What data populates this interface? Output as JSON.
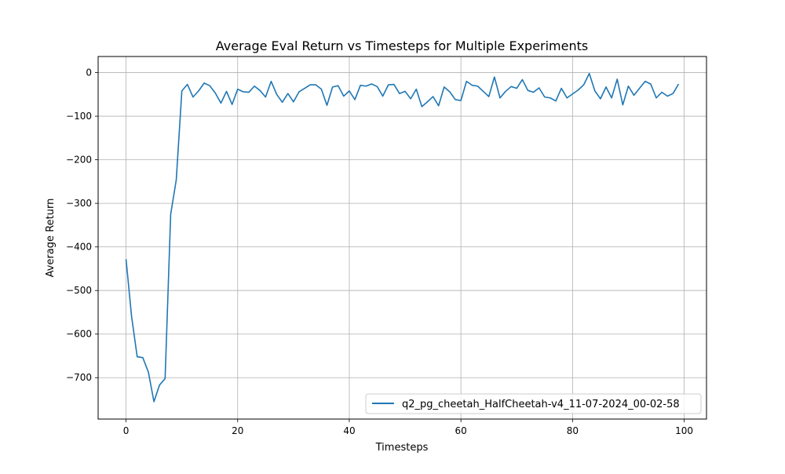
{
  "chart_data": {
    "type": "line",
    "title": "Average Eval Return vs Timesteps for Multiple Experiments",
    "xlabel": "Timesteps",
    "ylabel": "Average Return",
    "xlim": [
      -5,
      104
    ],
    "ylim": [
      -795,
      37
    ],
    "xticks": [
      0,
      20,
      40,
      60,
      80,
      100
    ],
    "yticks": [
      0,
      -100,
      -200,
      -300,
      -400,
      -500,
      -600,
      -700
    ],
    "grid": true,
    "legend_position": "lower-right",
    "series": [
      {
        "name": "q2_pg_cheetah_HalfCheetah-v4_11-07-2024_00-02-58",
        "color": "#1f77b4",
        "x": [
          0,
          1,
          2,
          3,
          4,
          5,
          6,
          7,
          8,
          9,
          10,
          11,
          12,
          13,
          14,
          15,
          16,
          17,
          18,
          19,
          20,
          21,
          22,
          23,
          24,
          25,
          26,
          27,
          28,
          29,
          30,
          31,
          32,
          33,
          34,
          35,
          36,
          37,
          38,
          39,
          40,
          41,
          42,
          43,
          44,
          45,
          46,
          47,
          48,
          49,
          50,
          51,
          52,
          53,
          54,
          55,
          56,
          57,
          58,
          59,
          60,
          61,
          62,
          63,
          64,
          65,
          66,
          67,
          68,
          69,
          70,
          71,
          72,
          73,
          74,
          75,
          76,
          77,
          78,
          79,
          80,
          81,
          82,
          83,
          84,
          85,
          86,
          87,
          88,
          89,
          90,
          91,
          92,
          93,
          94,
          95,
          96,
          97,
          98,
          99
        ],
        "y": [
          -428,
          -560,
          -652,
          -654,
          -687,
          -755,
          -717,
          -702,
          -325,
          -246,
          -42,
          -27,
          -56,
          -42,
          -24,
          -30,
          -47,
          -70,
          -43,
          -73,
          -38,
          -44,
          -45,
          -31,
          -41,
          -56,
          -20,
          -50,
          -68,
          -48,
          -67,
          -44,
          -36,
          -28,
          -28,
          -38,
          -75,
          -33,
          -30,
          -54,
          -42,
          -62,
          -29,
          -31,
          -26,
          -32,
          -54,
          -28,
          -27,
          -48,
          -43,
          -60,
          -38,
          -78,
          -67,
          -55,
          -76,
          -33,
          -44,
          -62,
          -64,
          -20,
          -29,
          -31,
          -43,
          -55,
          -10,
          -58,
          -43,
          -32,
          -36,
          -16,
          -41,
          -45,
          -35,
          -56,
          -58,
          -65,
          -36,
          -58,
          -49,
          -40,
          -28,
          -2,
          -42,
          -60,
          -33,
          -58,
          -15,
          -74,
          -31,
          -52,
          -36,
          -20,
          -26,
          -58,
          -45,
          -54,
          -48,
          -26
        ]
      }
    ]
  }
}
